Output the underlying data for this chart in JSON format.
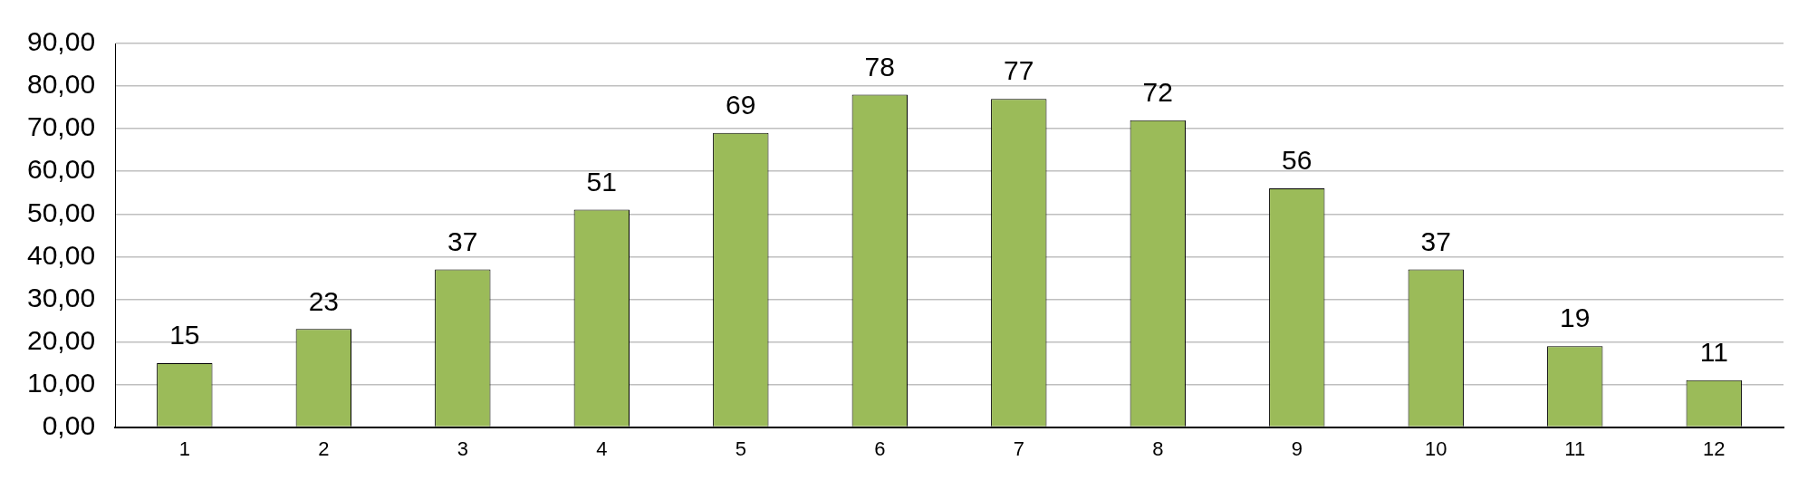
{
  "chart_data": {
    "type": "bar",
    "categories": [
      "1",
      "2",
      "3",
      "4",
      "5",
      "6",
      "7",
      "8",
      "9",
      "10",
      "11",
      "12"
    ],
    "values": [
      15,
      23,
      37,
      51,
      69,
      78,
      77,
      72,
      56,
      37,
      19,
      11
    ],
    "color": "#9bbb59",
    "ylim": [
      0,
      90
    ],
    "yticks": [
      {
        "value": 0,
        "label": "0,00"
      },
      {
        "value": 10,
        "label": "10,00"
      },
      {
        "value": 20,
        "label": "20,00"
      },
      {
        "value": 30,
        "label": "30,00"
      },
      {
        "value": 40,
        "label": "40,00"
      },
      {
        "value": 50,
        "label": "50,00"
      },
      {
        "value": 60,
        "label": "60,00"
      },
      {
        "value": 70,
        "label": "70,00"
      },
      {
        "value": 80,
        "label": "80,00"
      },
      {
        "value": 90,
        "label": "90,00"
      }
    ],
    "grid": "y",
    "data_labels": true
  }
}
